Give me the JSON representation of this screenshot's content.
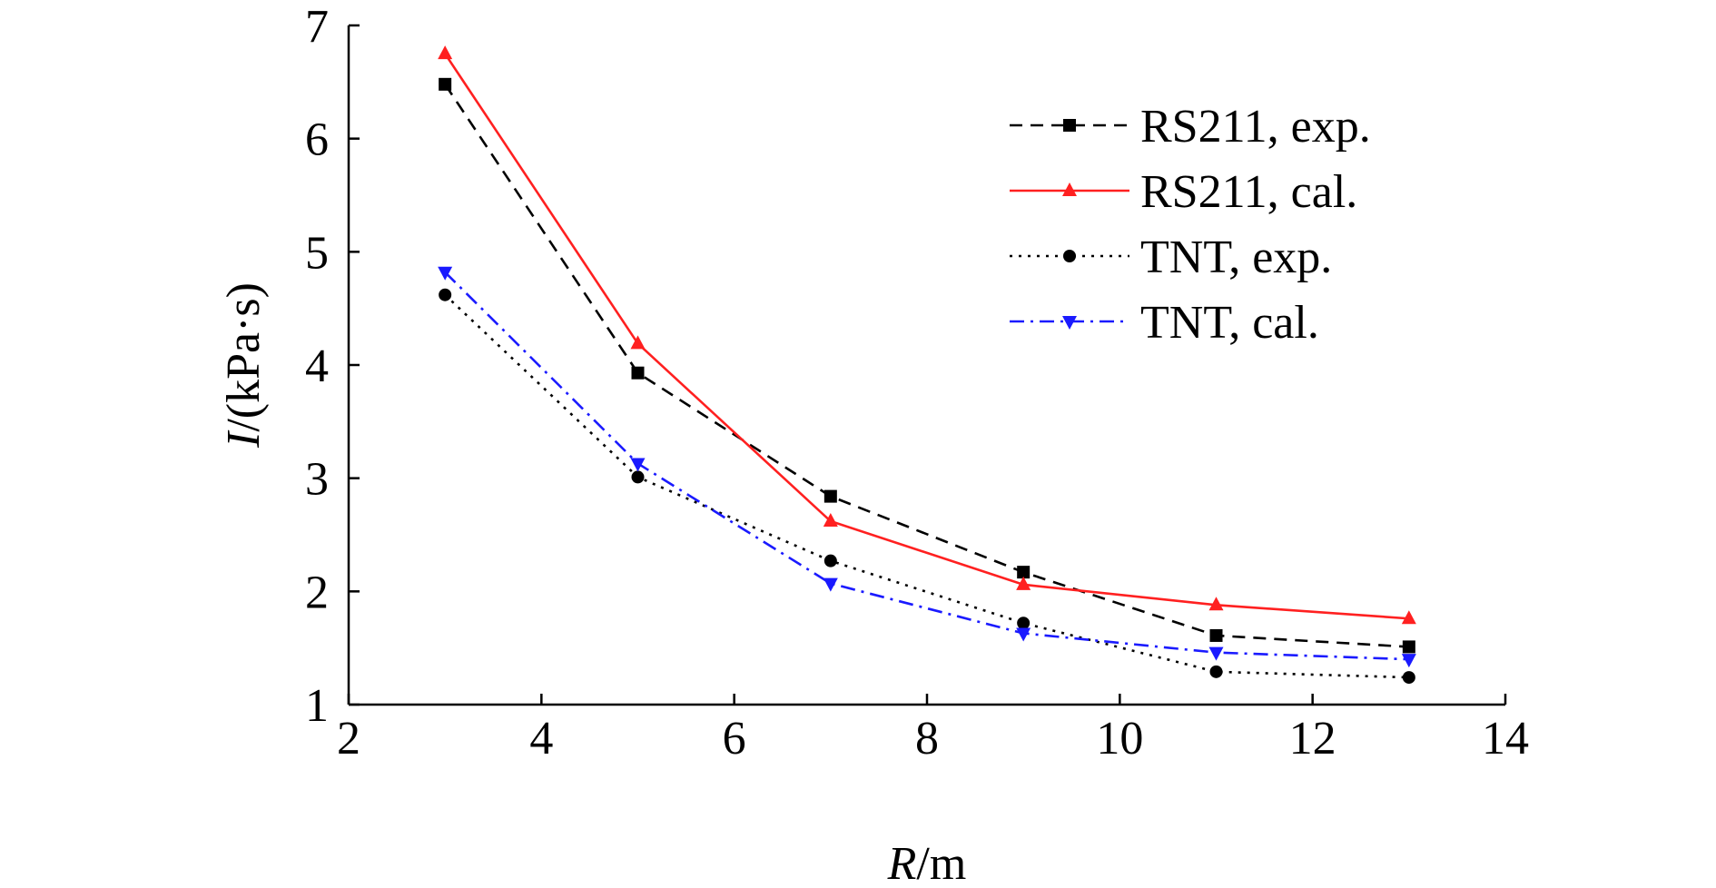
{
  "chart_data": {
    "type": "line",
    "title": "",
    "xlabel_italic": "R",
    "xlabel_rest": "/m",
    "ylabel_italic": "I",
    "ylabel_rest": "/(kPa·s)",
    "xlim": [
      2,
      14
    ],
    "ylim": [
      1,
      7
    ],
    "x_ticks": [
      2,
      4,
      6,
      8,
      10,
      12,
      14
    ],
    "y_ticks": [
      1,
      2,
      3,
      4,
      5,
      6,
      7
    ],
    "grid": false,
    "legend_position": "top-right",
    "x": [
      3,
      5,
      7,
      9,
      11,
      13
    ],
    "series": [
      {
        "name": "RS211, exp.",
        "values": [
          6.48,
          3.93,
          2.84,
          2.17,
          1.61,
          1.51
        ],
        "color": "#000000",
        "dash": "dashed",
        "marker": "square"
      },
      {
        "name": "RS211, cal.",
        "values": [
          6.75,
          4.19,
          2.62,
          2.06,
          1.88,
          1.76
        ],
        "color": "#ff2020",
        "dash": "solid",
        "marker": "triangle-up"
      },
      {
        "name": "TNT, exp.",
        "values": [
          4.62,
          3.01,
          2.27,
          1.72,
          1.29,
          1.24
        ],
        "color": "#000000",
        "dash": "dotted",
        "marker": "circle"
      },
      {
        "name": "TNT, cal.",
        "values": [
          4.82,
          3.13,
          2.07,
          1.63,
          1.46,
          1.4
        ],
        "color": "#1a1aff",
        "dash": "dashdot",
        "marker": "triangle-down"
      }
    ]
  }
}
